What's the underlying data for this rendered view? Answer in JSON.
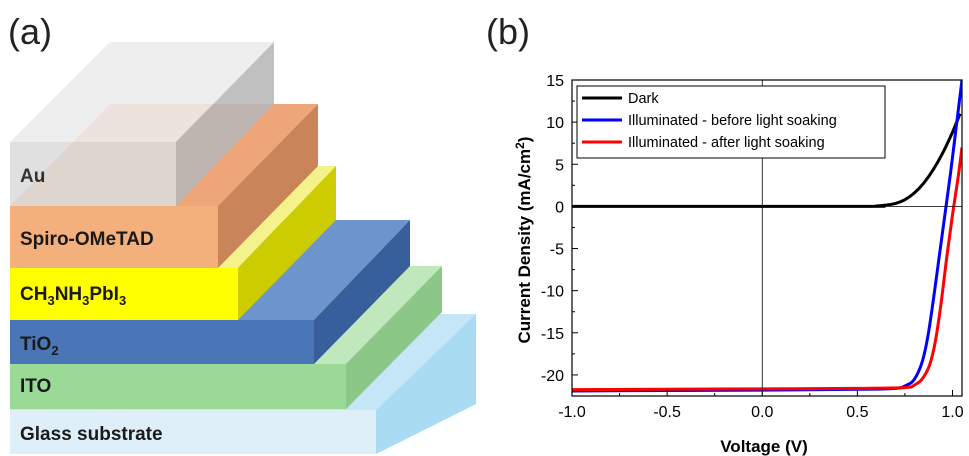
{
  "panel_a": {
    "label": "(a)",
    "layers": [
      {
        "key": "glass",
        "text": "Glass substrate",
        "color_front": "#dfeff9",
        "color_top": "#c4e6f7",
        "color_side": "#a9dcf2"
      },
      {
        "key": "ito",
        "text": "ITO",
        "color_front": "#9ad996",
        "color_top": "#c1e8bc",
        "color_side": "#8bc786"
      },
      {
        "key": "tio2",
        "text": "TiO",
        "sub": "2",
        "color_front": "#4a76b8",
        "color_top": "#6e94cc",
        "color_side": "#365f9c"
      },
      {
        "key": "perov",
        "text": "CH",
        "subs": [
          "3",
          "NH",
          "3",
          "PbI",
          "3"
        ],
        "color_front": "#ffff00",
        "color_top": "#f4f28a",
        "color_side": "#cccc00"
      },
      {
        "key": "spiro",
        "text": "Spiro-OMeTAD",
        "color_front": "#f4b07c",
        "color_top": "#eea578",
        "color_side": "#c9845a"
      },
      {
        "key": "au",
        "text": "Au",
        "color_front": "#dcdcdc",
        "color_top": "#ececec",
        "color_side": "#b8b8b8"
      }
    ]
  },
  "panel_b": {
    "label": "(b)"
  },
  "chart_data": {
    "type": "line",
    "xlabel": "Voltage (V)",
    "ylabel": "Current Density (mA/cm²)",
    "xlim": [
      -1.0,
      1.05
    ],
    "ylim": [
      -22.5,
      15
    ],
    "xticks": [
      -1.0,
      -0.5,
      0.0,
      0.5,
      1.0
    ],
    "xtick_labels": [
      "-1.0",
      "-0.5",
      "0.0",
      "0.5",
      "1.0"
    ],
    "yticks": [
      -20,
      -15,
      -10,
      -5,
      0,
      5,
      10,
      15
    ],
    "ytick_labels": [
      "-20",
      "-15",
      "-10",
      "-5",
      "0",
      "5",
      "10",
      "15"
    ],
    "legend_position": "top-left",
    "grid": false,
    "series": [
      {
        "name": "Dark",
        "color": "#000000",
        "x": [
          -1.0,
          0.5,
          0.6,
          0.65,
          0.7,
          0.75,
          0.8,
          0.85,
          0.9,
          0.95,
          1.0,
          1.04
        ],
        "y": [
          0,
          0,
          0.05,
          0.15,
          0.35,
          0.8,
          1.6,
          2.8,
          4.4,
          6.4,
          8.8,
          11.0
        ]
      },
      {
        "name": "Illuminated - before light soaking",
        "color": "#0000ff",
        "x": [
          -1.0,
          -0.5,
          0.0,
          0.5,
          0.7,
          0.76,
          0.8,
          0.84,
          0.87,
          0.9,
          0.93,
          0.96,
          0.99,
          1.02,
          1.05
        ],
        "y": [
          -21.9,
          -21.85,
          -21.8,
          -21.7,
          -21.6,
          -21.2,
          -20.5,
          -18.5,
          -15.5,
          -11.0,
          -6.0,
          -1.0,
          4.0,
          9.5,
          15.0
        ]
      },
      {
        "name": "Illuminated - after light soaking",
        "color": "#ff0000",
        "x": [
          -1.0,
          -0.5,
          0.0,
          0.5,
          0.75,
          0.8,
          0.84,
          0.88,
          0.91,
          0.94,
          0.97,
          1.0,
          1.03,
          1.05
        ],
        "y": [
          -21.75,
          -21.7,
          -21.65,
          -21.6,
          -21.5,
          -21.2,
          -20.5,
          -18.8,
          -16.0,
          -11.5,
          -6.0,
          -1.0,
          3.5,
          7.0
        ]
      }
    ]
  }
}
